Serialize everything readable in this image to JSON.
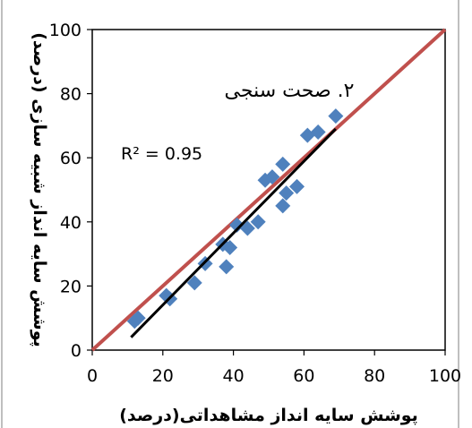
{
  "chart_data": {
    "type": "scatter",
    "title": "",
    "annotation": "۲. صحت سنجی",
    "r2_label": "R² = 0.95",
    "xlabel": "پوشش سایه انداز مشاهداتی(درصد)",
    "ylabel": "پوشش سایه انداز شبیه سازی (درصد)",
    "xlim": [
      0,
      100
    ],
    "ylim": [
      0,
      100
    ],
    "xticks": [
      0,
      20,
      40,
      60,
      80,
      100
    ],
    "yticks": [
      0,
      20,
      40,
      60,
      80,
      100
    ],
    "grid": false,
    "points": [
      {
        "x": 12,
        "y": 9
      },
      {
        "x": 13,
        "y": 10
      },
      {
        "x": 21,
        "y": 17
      },
      {
        "x": 22,
        "y": 16
      },
      {
        "x": 29,
        "y": 21
      },
      {
        "x": 32,
        "y": 27
      },
      {
        "x": 37,
        "y": 33
      },
      {
        "x": 38,
        "y": 26
      },
      {
        "x": 39,
        "y": 32
      },
      {
        "x": 41,
        "y": 39
      },
      {
        "x": 44,
        "y": 38
      },
      {
        "x": 47,
        "y": 40
      },
      {
        "x": 49,
        "y": 53
      },
      {
        "x": 51,
        "y": 54
      },
      {
        "x": 54,
        "y": 45
      },
      {
        "x": 54,
        "y": 58
      },
      {
        "x": 55,
        "y": 49
      },
      {
        "x": 58,
        "y": 51
      },
      {
        "x": 61,
        "y": 67
      },
      {
        "x": 64,
        "y": 68
      },
      {
        "x": 69,
        "y": 73
      }
    ],
    "identity_line": {
      "from": [
        0,
        0
      ],
      "to": [
        100,
        100
      ]
    },
    "trend_line": {
      "from": [
        11,
        4
      ],
      "to": [
        69,
        69
      ]
    },
    "colors": {
      "marker": "#4f81bd",
      "identity_line": "#c0504d",
      "trend_line": "#000000",
      "frame": "#000000"
    }
  }
}
